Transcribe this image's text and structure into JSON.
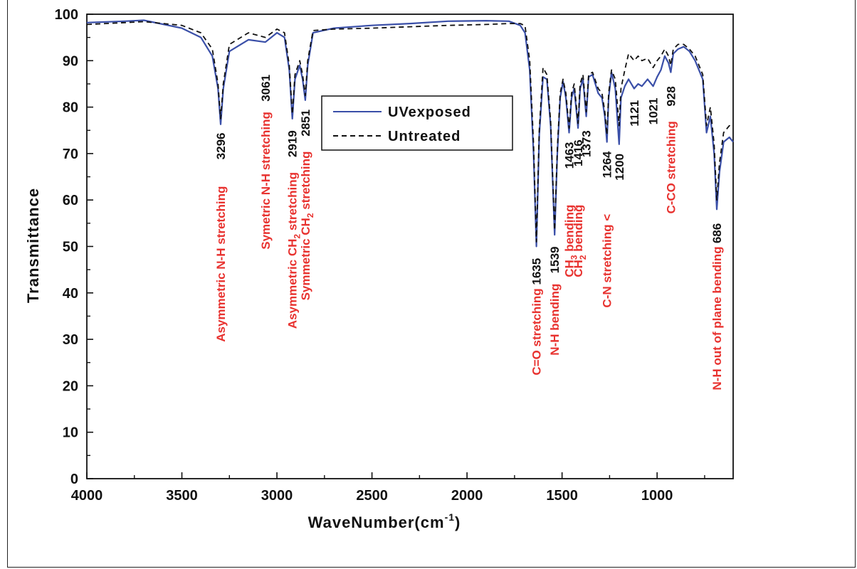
{
  "chart_data": {
    "type": "line",
    "title": "",
    "xlabel": "WaveNumber(cm",
    "xlabel_sup": "-1",
    "xlabel_end": ")",
    "ylabel": "Transmittance",
    "xlim": [
      4000,
      600
    ],
    "ylim": [
      0,
      100
    ],
    "x_reversed": true,
    "x_ticks": [
      4000,
      3500,
      3000,
      2500,
      2000,
      1500,
      1000
    ],
    "x_tick_labels": [
      "4000",
      "3500",
      "3000",
      "2500",
      "2000",
      "1500",
      "1000"
    ],
    "y_ticks": [
      0,
      10,
      20,
      30,
      40,
      50,
      60,
      70,
      80,
      90,
      100
    ],
    "y_tick_labels": [
      "0",
      "10",
      "20",
      "30",
      "40",
      "50",
      "60",
      "70",
      "80",
      "90",
      "100"
    ],
    "grid": false,
    "legend_position": "center",
    "series": [
      {
        "name": "UVexposed",
        "color": "#3a4fa8",
        "dash": "solid",
        "points": [
          [
            4000,
            98.2
          ],
          [
            3800,
            98.5
          ],
          [
            3700,
            98.7
          ],
          [
            3500,
            97.0
          ],
          [
            3400,
            95.0
          ],
          [
            3340,
            91.0
          ],
          [
            3310,
            84.0
          ],
          [
            3296,
            76.3
          ],
          [
            3282,
            84.0
          ],
          [
            3250,
            92.0
          ],
          [
            3150,
            94.5
          ],
          [
            3061,
            94.0
          ],
          [
            3000,
            96.0
          ],
          [
            2960,
            95.0
          ],
          [
            2935,
            88.0
          ],
          [
            2919,
            77.5
          ],
          [
            2905,
            86.0
          ],
          [
            2880,
            89.0
          ],
          [
            2865,
            86.0
          ],
          [
            2851,
            81.5
          ],
          [
            2838,
            89.0
          ],
          [
            2810,
            96.0
          ],
          [
            2700,
            97.0
          ],
          [
            2500,
            97.6
          ],
          [
            2300,
            98.0
          ],
          [
            2100,
            98.5
          ],
          [
            1900,
            98.6
          ],
          [
            1780,
            98.5
          ],
          [
            1720,
            97.6
          ],
          [
            1695,
            96.0
          ],
          [
            1670,
            88.0
          ],
          [
            1650,
            70.0
          ],
          [
            1635,
            50.0
          ],
          [
            1620,
            74.0
          ],
          [
            1600,
            86.5
          ],
          [
            1580,
            86.0
          ],
          [
            1560,
            76.0
          ],
          [
            1539,
            52.5
          ],
          [
            1525,
            70.0
          ],
          [
            1510,
            82.0
          ],
          [
            1495,
            85.5
          ],
          [
            1480,
            82.0
          ],
          [
            1463,
            74.5
          ],
          [
            1450,
            82.0
          ],
          [
            1436,
            84.0
          ],
          [
            1416,
            75.5
          ],
          [
            1405,
            84.0
          ],
          [
            1390,
            86.0
          ],
          [
            1373,
            78.0
          ],
          [
            1360,
            86.5
          ],
          [
            1340,
            87.0
          ],
          [
            1310,
            83.0
          ],
          [
            1290,
            82.0
          ],
          [
            1275,
            78.0
          ],
          [
            1264,
            72.5
          ],
          [
            1255,
            82.0
          ],
          [
            1240,
            87.5
          ],
          [
            1220,
            84.0
          ],
          [
            1200,
            72.0
          ],
          [
            1190,
            82.0
          ],
          [
            1170,
            84.5
          ],
          [
            1150,
            86.0
          ],
          [
            1121,
            84.0
          ],
          [
            1100,
            85.0
          ],
          [
            1080,
            84.5
          ],
          [
            1050,
            86.0
          ],
          [
            1021,
            84.5
          ],
          [
            1000,
            86.5
          ],
          [
            980,
            88.0
          ],
          [
            960,
            91.0
          ],
          [
            940,
            89.5
          ],
          [
            928,
            87.5
          ],
          [
            915,
            91.5
          ],
          [
            890,
            92.5
          ],
          [
            860,
            93.0
          ],
          [
            830,
            92.0
          ],
          [
            800,
            90.0
          ],
          [
            760,
            86.0
          ],
          [
            740,
            74.5
          ],
          [
            720,
            78.0
          ],
          [
            700,
            70.0
          ],
          [
            686,
            58.0
          ],
          [
            672,
            66.0
          ],
          [
            650,
            72.5
          ],
          [
            620,
            73.5
          ],
          [
            600,
            72.5
          ]
        ]
      },
      {
        "name": "Untreated",
        "color": "#111111",
        "dash": "dashed",
        "points": [
          [
            4000,
            97.8
          ],
          [
            3800,
            98.2
          ],
          [
            3700,
            98.4
          ],
          [
            3500,
            97.6
          ],
          [
            3400,
            96.0
          ],
          [
            3340,
            92.5
          ],
          [
            3310,
            85.0
          ],
          [
            3296,
            77.5
          ],
          [
            3282,
            85.0
          ],
          [
            3250,
            93.5
          ],
          [
            3150,
            96.0
          ],
          [
            3061,
            95.0
          ],
          [
            3000,
            96.8
          ],
          [
            2960,
            96.0
          ],
          [
            2935,
            89.0
          ],
          [
            2919,
            78.5
          ],
          [
            2905,
            87.0
          ],
          [
            2880,
            90.0
          ],
          [
            2865,
            87.0
          ],
          [
            2851,
            82.5
          ],
          [
            2838,
            90.0
          ],
          [
            2810,
            96.5
          ],
          [
            2700,
            96.8
          ],
          [
            2500,
            97.0
          ],
          [
            2300,
            97.3
          ],
          [
            2100,
            97.6
          ],
          [
            1900,
            97.8
          ],
          [
            1780,
            98.0
          ],
          [
            1720,
            98.0
          ],
          [
            1695,
            97.5
          ],
          [
            1670,
            90.0
          ],
          [
            1650,
            72.0
          ],
          [
            1635,
            51.0
          ],
          [
            1620,
            75.0
          ],
          [
            1600,
            88.5
          ],
          [
            1580,
            87.0
          ],
          [
            1560,
            77.0
          ],
          [
            1539,
            53.5
          ],
          [
            1525,
            71.0
          ],
          [
            1510,
            83.0
          ],
          [
            1495,
            86.0
          ],
          [
            1480,
            83.0
          ],
          [
            1463,
            75.5
          ],
          [
            1450,
            83.0
          ],
          [
            1436,
            85.0
          ],
          [
            1416,
            76.5
          ],
          [
            1405,
            85.0
          ],
          [
            1390,
            87.0
          ],
          [
            1373,
            79.0
          ],
          [
            1360,
            87.0
          ],
          [
            1340,
            87.5
          ],
          [
            1310,
            84.0
          ],
          [
            1290,
            83.0
          ],
          [
            1275,
            79.0
          ],
          [
            1264,
            74.0
          ],
          [
            1255,
            83.0
          ],
          [
            1240,
            88.0
          ],
          [
            1220,
            86.0
          ],
          [
            1200,
            76.0
          ],
          [
            1190,
            84.0
          ],
          [
            1170,
            88.0
          ],
          [
            1150,
            91.5
          ],
          [
            1121,
            90.0
          ],
          [
            1100,
            91.0
          ],
          [
            1080,
            90.0
          ],
          [
            1050,
            90.5
          ],
          [
            1021,
            88.5
          ],
          [
            1000,
            90.0
          ],
          [
            980,
            91.0
          ],
          [
            960,
            92.5
          ],
          [
            940,
            91.0
          ],
          [
            928,
            89.0
          ],
          [
            915,
            92.5
          ],
          [
            890,
            93.5
          ],
          [
            860,
            93.5
          ],
          [
            830,
            92.5
          ],
          [
            800,
            91.0
          ],
          [
            760,
            87.0
          ],
          [
            740,
            76.0
          ],
          [
            720,
            80.0
          ],
          [
            700,
            72.0
          ],
          [
            686,
            60.0
          ],
          [
            672,
            68.0
          ],
          [
            650,
            74.5
          ],
          [
            620,
            76.0
          ],
          [
            600,
            75.5
          ]
        ]
      }
    ],
    "peak_labels": [
      {
        "x": 3296,
        "y": 74.5,
        "text": "3296"
      },
      {
        "x": 3061,
        "y": 87.0,
        "text": "3061"
      },
      {
        "x": 2919,
        "y": 75.0,
        "text": "2919"
      },
      {
        "x": 2851,
        "y": 79.5,
        "text": "2851"
      },
      {
        "x": 1635,
        "y": 47.5,
        "text": "1635"
      },
      {
        "x": 1539,
        "y": 50.0,
        "text": "1539"
      },
      {
        "x": 1463,
        "y": 72.5,
        "text": "1463"
      },
      {
        "x": 1416,
        "y": 73.0,
        "text": "1416"
      },
      {
        "x": 1373,
        "y": 75.0,
        "text": "1373"
      },
      {
        "x": 1264,
        "y": 70.5,
        "text": "1264"
      },
      {
        "x": 1200,
        "y": 70.0,
        "text": "1200"
      },
      {
        "x": 1121,
        "y": 81.5,
        "text": "1121"
      },
      {
        "x": 1021,
        "y": 82.0,
        "text": "1021"
      },
      {
        "x": 928,
        "y": 84.5,
        "text": "928"
      },
      {
        "x": 686,
        "y": 55.0,
        "text": "686"
      }
    ],
    "assignment_labels": [
      {
        "x": 3296,
        "y": 63.0,
        "text": "Asymmetric N-H stretching"
      },
      {
        "x": 3061,
        "y": 79.0,
        "text": "Symetric N-H stretching"
      },
      {
        "x": 2919,
        "y": 66.0,
        "text": "Asymmetric CH",
        "sub": "2",
        "after": " stretching"
      },
      {
        "x": 2851,
        "y": 70.5,
        "text": "Symmetric CH",
        "sub": "2",
        "after": " stretching"
      },
      {
        "x": 1635,
        "y": 41.0,
        "text": "C=O stretching"
      },
      {
        "x": 1539,
        "y": 42.0,
        "text": "N-H bending"
      },
      {
        "x": 1463,
        "y": 59.0,
        "text": "CH",
        "sub": "3",
        "after": " bending"
      },
      {
        "x": 1416,
        "y": 59.0,
        "text": "CH",
        "sub": "2",
        "after": " bending"
      },
      {
        "x": 1264,
        "y": 57.0,
        "text": "C-N stretching <"
      },
      {
        "x": 928,
        "y": 77.0,
        "text": "C-CO stretching"
      },
      {
        "x": 686,
        "y": 50.0,
        "text": "N-H out of plane bending"
      }
    ]
  }
}
